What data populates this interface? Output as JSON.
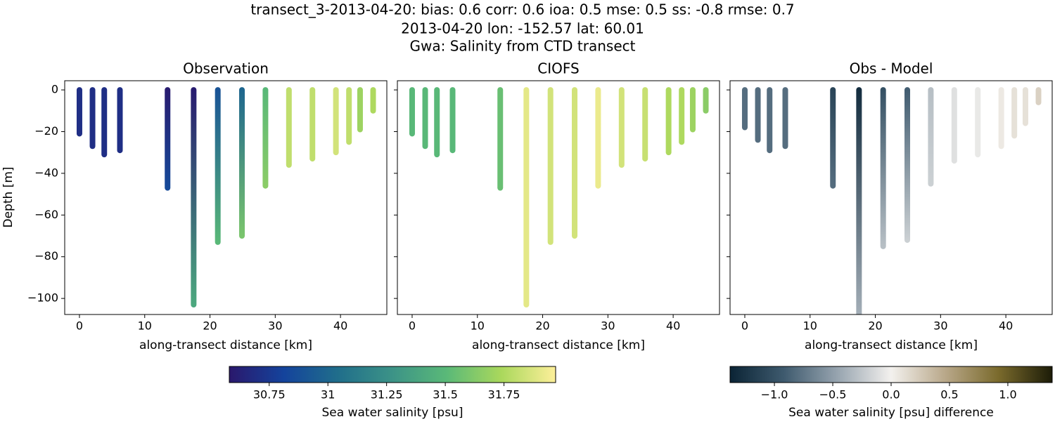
{
  "suptitle": [
    "transect_3-2013-04-20: bias: 0.6  corr: 0.6  ioa: 0.5  mse: 0.5  ss: -0.8  rmse: 0.7",
    "2013-04-20 lon: -152.57 lat: 60.01",
    "Gwa: Salinity from CTD transect"
  ],
  "chart_data": [
    {
      "type": "scatter",
      "title": "Observation",
      "xlabel": "along-transect distance [km]",
      "ylabel": "Depth [m]",
      "xlim": [
        -2.26,
        47.1
      ],
      "xticks": [
        0,
        10,
        20,
        30,
        40
      ],
      "ylim": [
        -107.7,
        4.4
      ],
      "yticks": [
        {
          "value": -100,
          "label": "−100"
        },
        {
          "value": -80,
          "label": "−80"
        },
        {
          "value": -60,
          "label": "−60"
        },
        {
          "value": -40,
          "label": "−40"
        },
        {
          "value": -20,
          "label": "−20"
        },
        0
      ],
      "x": [
        0,
        2,
        3.8,
        6.2,
        13.5,
        17.5,
        21.2,
        24.9,
        28.5,
        32.1,
        35.7,
        39.3,
        41.3,
        43,
        45
      ],
      "y_min": [
        -21,
        -27,
        -31,
        -29,
        -47,
        -103,
        -73,
        -70,
        -46,
        -36,
        -33,
        -30,
        -25,
        -19,
        -10
      ],
      "values_top": [
        30.7,
        30.7,
        30.7,
        30.7,
        30.6,
        30.6,
        30.9,
        31.0,
        31.5,
        31.8,
        31.8,
        31.85,
        31.8,
        31.7,
        31.75
      ],
      "values_bottom": [
        30.7,
        30.7,
        30.7,
        30.7,
        30.85,
        31.4,
        31.5,
        31.6,
        31.65,
        31.8,
        31.8,
        31.85,
        31.8,
        31.7,
        31.75
      ],
      "colorbar": {
        "label": "Sea water salinity [psu]",
        "lim": [
          30.58,
          31.97
        ],
        "ticks": [
          30.75,
          31.0,
          31.25,
          31.5,
          31.75
        ],
        "colors": [
          "#2a186c",
          "#14439c",
          "#206e8b",
          "#3c9387",
          "#5ab978",
          "#aad85c",
          "#fdef9a"
        ]
      }
    },
    {
      "type": "scatter",
      "title": "CIOFS",
      "xlabel": "along-transect distance [km]",
      "xlim": [
        -2.26,
        47.1
      ],
      "xticks": [
        0,
        10,
        20,
        30,
        40
      ],
      "ylim": [
        -107.7,
        4.4
      ],
      "x": [
        0,
        2,
        3.8,
        6.2,
        13.5,
        17.5,
        21.2,
        24.9,
        28.5,
        32.1,
        35.7,
        39.3,
        41.3,
        43,
        45
      ],
      "y_min": [
        -21,
        -27,
        -31,
        -29,
        -47,
        -103,
        -73,
        -70,
        -46,
        -36,
        -33,
        -30,
        -25,
        -19,
        -10
      ],
      "values_top": [
        31.5,
        31.5,
        31.5,
        31.5,
        31.55,
        31.9,
        31.85,
        31.85,
        31.92,
        31.85,
        31.82,
        31.75,
        31.75,
        31.7,
        31.65
      ],
      "values_bottom": [
        31.5,
        31.5,
        31.5,
        31.5,
        31.55,
        31.9,
        31.85,
        31.85,
        31.92,
        31.85,
        31.82,
        31.75,
        31.75,
        31.7,
        31.65
      ]
    },
    {
      "type": "scatter",
      "title": "Obs - Model",
      "xlabel": "along-transect distance [km]",
      "xlim": [
        -2.26,
        47.1
      ],
      "xticks": [
        0,
        10,
        20,
        30,
        40
      ],
      "ylim": [
        -107.7,
        4.4
      ],
      "x": [
        0,
        2,
        3.8,
        6.2,
        13.5,
        17.5,
        21.2,
        24.9,
        28.5,
        32.1,
        35.7,
        39.3,
        41.3,
        43,
        45
      ],
      "y_min": [
        -18,
        -24,
        -29,
        -27,
        -46,
        -108,
        -75,
        -72,
        -45,
        -34,
        -31,
        -27,
        -22,
        -16,
        -6
      ],
      "values_top": [
        -0.8,
        -0.8,
        -0.8,
        -0.8,
        -1.1,
        -1.3,
        -1.0,
        -0.9,
        -0.3,
        -0.1,
        -0.05,
        0.05,
        0.1,
        0.1,
        0.2
      ],
      "values_bottom": [
        -0.8,
        -0.8,
        -0.8,
        -0.8,
        -0.8,
        -0.4,
        -0.3,
        -0.2,
        -0.2,
        -0.1,
        -0.05,
        0.05,
        0.1,
        0.1,
        0.2
      ],
      "colorbar": {
        "label": "Sea water salinity [psu] difference",
        "lim": [
          -1.38,
          1.38
        ],
        "ticks": [
          {
            "value": -1,
            "label": "−1.0"
          },
          {
            "value": -0.5,
            "label": "−0.5"
          },
          {
            "value": 0,
            "label": "0.0"
          },
          0.5,
          {
            "value": 1,
            "label": "1.0"
          }
        ],
        "colors": [
          "#0b2435",
          "#3e5a6e",
          "#97a4af",
          "#f3f1ee",
          "#b9a88a",
          "#7a6a2c",
          "#1c1c08"
        ]
      }
    }
  ]
}
